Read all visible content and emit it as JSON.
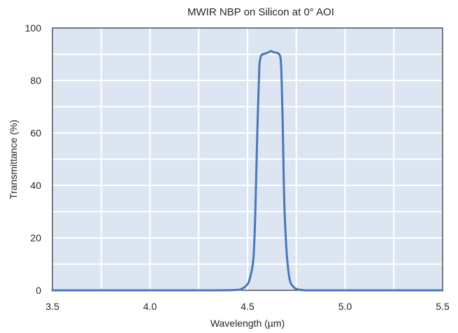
{
  "chart_data": {
    "type": "line",
    "title": "MWIR NBP on Silicon at 0° AOI",
    "xlabel": "Wavelength (µm)",
    "ylabel": "Transmittance (%)",
    "xlim": [
      3.5,
      5.5
    ],
    "ylim": [
      0,
      100
    ],
    "x_ticks": [
      "3.5",
      "4.0",
      "4.5",
      "5.0",
      "5.5"
    ],
    "y_ticks": [
      "0",
      "20",
      "40",
      "60",
      "80",
      "100"
    ],
    "x_grid_step": 0.25,
    "y_grid_step": 10,
    "grid": true,
    "legend": "none",
    "colors": {
      "plot_background": "#dce6f2",
      "grid": "#ffffff",
      "line": "#4a76b8",
      "frame": "#000000"
    },
    "series": [
      {
        "x": [
          3.5,
          4.3,
          4.45,
          4.47,
          4.49,
          4.51,
          4.53,
          4.54,
          4.55,
          4.56,
          4.565,
          4.57,
          4.58,
          4.6,
          4.62,
          4.63,
          4.645,
          4.66,
          4.67,
          4.675,
          4.68,
          4.685,
          4.69,
          4.7,
          4.71,
          4.72,
          4.74,
          4.76,
          4.8,
          4.9,
          5.5
        ],
        "y": [
          0,
          0,
          0.2,
          0.6,
          1.5,
          4,
          12,
          30,
          60,
          84,
          88,
          89.5,
          90,
          90.5,
          91.2,
          90.9,
          90.6,
          90.2,
          88,
          80,
          65,
          45,
          30,
          15,
          7,
          3,
          1,
          0.3,
          0,
          0,
          0
        ]
      }
    ]
  }
}
